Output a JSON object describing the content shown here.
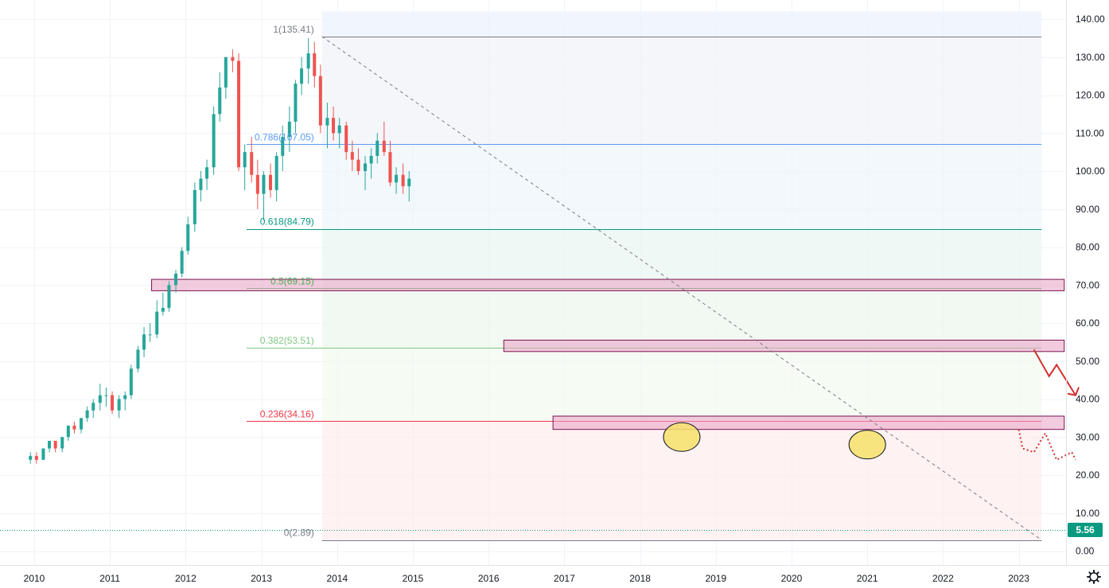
{
  "chart_data": {
    "type": "candlestick",
    "x_axis": {
      "ticks": [
        "2010",
        "2011",
        "2012",
        "2013",
        "2014",
        "2015",
        "2016",
        "2017",
        "2018",
        "2019",
        "2020",
        "2021",
        "2022",
        "2023"
      ]
    },
    "y_axis": {
      "ticks": [
        "0.00",
        "10.00",
        "20.00",
        "30.00",
        "40.00",
        "50.00",
        "60.00",
        "70.00",
        "80.00",
        "90.00",
        "100.00",
        "110.00",
        "120.00",
        "130.00",
        "140.00"
      ],
      "ylim": [
        0,
        145
      ]
    },
    "last_price": "5.56",
    "fibonacci": {
      "from_date": 2013.8,
      "to_date": 2023.3,
      "levels": [
        {
          "label": "1(135.41)",
          "value": 135.41,
          "color": "#787b86"
        },
        {
          "label": "0.786(107.05)",
          "value": 107.05,
          "color": "#5b9cf6"
        },
        {
          "label": "0.618(84.79)",
          "value": 84.79,
          "color": "#089981"
        },
        {
          "label": "0.5(69.15)",
          "value": 69.15,
          "color": "#4caf50"
        },
        {
          "label": "0.382(53.51)",
          "value": 53.51,
          "color": "#81c784"
        },
        {
          "label": "0.236(34.16)",
          "value": 34.16,
          "color": "#f23645"
        },
        {
          "label": "0(2.89)",
          "value": 2.89,
          "color": "#787b86"
        }
      ]
    },
    "zones": [
      {
        "from": 2011.55,
        "to": 2023.6,
        "low": 68.5,
        "high": 71.5
      },
      {
        "from": 2016.2,
        "to": 2023.6,
        "low": 52.5,
        "high": 55.5
      },
      {
        "from": 2016.85,
        "to": 2023.6,
        "low": 32.0,
        "high": 35.5
      }
    ],
    "trendline": {
      "from": [
        2013.8,
        135.4
      ],
      "to": [
        2023.3,
        2.9
      ]
    },
    "highlights": [
      [
        2018.55,
        30.0
      ],
      [
        2021.0,
        28.0
      ]
    ],
    "candles": [
      [
        2009.95,
        24,
        26,
        23,
        25
      ],
      [
        2010.03,
        25,
        26,
        23,
        24
      ],
      [
        2010.12,
        24,
        27,
        24,
        27
      ],
      [
        2010.2,
        27,
        29,
        26,
        29
      ],
      [
        2010.28,
        29,
        29,
        26,
        27
      ],
      [
        2010.37,
        27,
        30,
        26,
        30
      ],
      [
        2010.45,
        30,
        33,
        29,
        33
      ],
      [
        2010.53,
        33,
        34,
        31,
        32
      ],
      [
        2010.62,
        32,
        35,
        31,
        35
      ],
      [
        2010.7,
        35,
        38,
        34,
        37
      ],
      [
        2010.78,
        37,
        40,
        35,
        39
      ],
      [
        2010.87,
        39,
        44,
        37,
        41
      ],
      [
        2010.95,
        41,
        43,
        38,
        41
      ],
      [
        2011.03,
        41,
        42,
        36,
        37
      ],
      [
        2011.12,
        37,
        41,
        35,
        40
      ],
      [
        2011.2,
        40,
        42,
        37,
        41
      ],
      [
        2011.28,
        41,
        49,
        40,
        48
      ],
      [
        2011.37,
        48,
        54,
        47,
        53
      ],
      [
        2011.45,
        53,
        59,
        51,
        57
      ],
      [
        2011.53,
        57,
        60,
        55,
        57
      ],
      [
        2011.62,
        57,
        66,
        56,
        63
      ],
      [
        2011.7,
        63,
        68,
        62,
        64
      ],
      [
        2011.78,
        64,
        71,
        63,
        70
      ],
      [
        2011.87,
        70,
        74,
        68,
        73
      ],
      [
        2011.95,
        73,
        80,
        72,
        79
      ],
      [
        2012.03,
        79,
        88,
        78,
        86
      ],
      [
        2012.12,
        86,
        97,
        84,
        95
      ],
      [
        2012.2,
        95,
        100,
        92,
        98
      ],
      [
        2012.28,
        98,
        103,
        95,
        101
      ],
      [
        2012.37,
        101,
        117,
        99,
        115
      ],
      [
        2012.45,
        115,
        126,
        113,
        122
      ],
      [
        2012.53,
        122,
        130,
        119,
        130
      ],
      [
        2012.62,
        130,
        132,
        126,
        129
      ],
      [
        2012.7,
        129,
        131,
        100,
        101
      ],
      [
        2012.78,
        101,
        107,
        95,
        105
      ],
      [
        2012.87,
        105,
        109,
        97,
        99
      ],
      [
        2012.95,
        99,
        103,
        90,
        94
      ],
      [
        2013.03,
        94,
        100,
        87,
        99
      ],
      [
        2013.12,
        99,
        102,
        93,
        95
      ],
      [
        2013.2,
        95,
        105,
        92,
        104
      ],
      [
        2013.28,
        104,
        112,
        100,
        109
      ],
      [
        2013.37,
        109,
        117,
        105,
        113
      ],
      [
        2013.45,
        113,
        124,
        110,
        123
      ],
      [
        2013.53,
        123,
        130,
        120,
        127
      ],
      [
        2013.62,
        127,
        135,
        123,
        131
      ],
      [
        2013.7,
        131,
        134,
        122,
        125
      ],
      [
        2013.78,
        125,
        128,
        110,
        112
      ],
      [
        2013.87,
        112,
        118,
        106,
        114
      ],
      [
        2013.95,
        114,
        117,
        108,
        110
      ],
      [
        2014.03,
        110,
        114,
        106,
        112
      ],
      [
        2014.12,
        112,
        113,
        103,
        105
      ],
      [
        2014.2,
        105,
        108,
        100,
        103
      ],
      [
        2014.28,
        103,
        106,
        99,
        100
      ],
      [
        2014.37,
        100,
        104,
        95,
        102
      ],
      [
        2014.45,
        102,
        106,
        98,
        104
      ],
      [
        2014.53,
        104,
        110,
        102,
        108
      ],
      [
        2014.62,
        108,
        113,
        104,
        105
      ],
      [
        2014.7,
        105,
        108,
        96,
        97
      ],
      [
        2014.78,
        97,
        101,
        94,
        99
      ],
      [
        2014.87,
        99,
        102,
        94,
        96
      ],
      [
        2014.95,
        96,
        100,
        92,
        98
      ]
    ]
  }
}
